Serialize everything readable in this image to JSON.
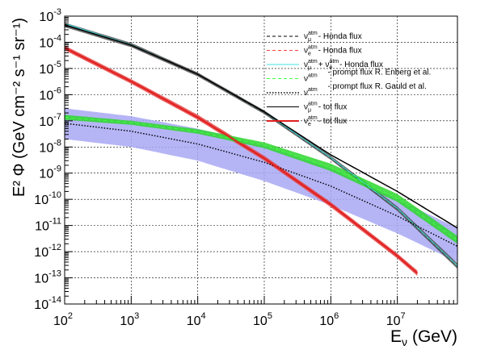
{
  "chart_data": {
    "type": "line",
    "title": "",
    "xlabel": "E",
    "xlabel_sub": "ν",
    "xlabel_unit": "(GeV)",
    "ylabel": "E² Φ (GeV cm⁻² s⁻¹ sr⁻¹)",
    "x_log": true,
    "y_log": true,
    "xlim": [
      100,
      80000000
    ],
    "ylim": [
      1e-14,
      0.001
    ],
    "grid": true,
    "x_ticks": [
      {
        "value": 100,
        "base": "10",
        "exp": "2"
      },
      {
        "value": 1000,
        "base": "10",
        "exp": "3"
      },
      {
        "value": 10000,
        "base": "10",
        "exp": "4"
      },
      {
        "value": 100000,
        "base": "10",
        "exp": "5"
      },
      {
        "value": 1000000,
        "base": "10",
        "exp": "6"
      },
      {
        "value": 10000000,
        "base": "10",
        "exp": "7"
      }
    ],
    "y_ticks": [
      {
        "value": 1e-14,
        "base": "10",
        "exp": "-14"
      },
      {
        "value": 1e-13,
        "base": "10",
        "exp": "-13"
      },
      {
        "value": 1e-12,
        "base": "10",
        "exp": "-12"
      },
      {
        "value": 1e-11,
        "base": "10",
        "exp": "-11"
      },
      {
        "value": 1e-10,
        "base": "10",
        "exp": "-10"
      },
      {
        "value": 1e-09,
        "base": "10",
        "exp": "-9"
      },
      {
        "value": 1e-08,
        "base": "10",
        "exp": "-8"
      },
      {
        "value": 1e-07,
        "base": "10",
        "exp": "-7"
      },
      {
        "value": 1e-06,
        "base": "10",
        "exp": "-6"
      },
      {
        "value": 1e-05,
        "base": "10",
        "exp": "-5"
      },
      {
        "value": 0.0001,
        "base": "10",
        "exp": "-4"
      },
      {
        "value": 0.001,
        "base": "10",
        "exp": "-3"
      }
    ],
    "bands": [
      {
        "name": "prompt flux R. Gauld uncertainty band",
        "color": "#a8a8f4",
        "x": [
          100,
          1000,
          10000,
          100000,
          1000000,
          10000000,
          80000000
        ],
        "y_low": [
          2e-08,
          1e-08,
          3e-09,
          5e-10,
          6e-11,
          5e-12,
          4e-13
        ],
        "y_high": [
          3e-07,
          1.5e-07,
          5e-08,
          1.2e-08,
          1.5e-09,
          1e-10,
          8e-12
        ]
      },
      {
        "name": "numu atm total band",
        "color": "#505050",
        "x": [
          100,
          1000,
          10000,
          100000,
          1000000,
          10000000,
          80000000
        ],
        "y_low": [
          0.00038,
          6.5e-05,
          5e-06,
          1.8e-07,
          3.2e-09,
          3.6e-11,
          2.2e-13
        ],
        "y_high": [
          0.00056,
          9.5e-05,
          7e-06,
          2.5e-07,
          4.6e-09,
          5.4e-11,
          3.6e-13
        ]
      },
      {
        "name": "nue atm total band",
        "color": "#e84040",
        "x": [
          100,
          1000,
          10000,
          100000,
          1000000,
          10000000,
          20000000
        ],
        "y_low": [
          5e-05,
          2.6e-06,
          1.1e-07,
          3e-09,
          5e-11,
          5.5e-13,
          1.2e-13
        ],
        "y_high": [
          7.5e-05,
          3.9e-06,
          1.7e-07,
          4.6e-09,
          7.8e-11,
          8.5e-13,
          1.9e-13
        ]
      },
      {
        "name": "prompt flux R. Enberg band",
        "color": "#2ed62e",
        "x": [
          100,
          1000,
          10000,
          100000,
          1000000,
          10000000,
          80000000
        ],
        "y_low": [
          1.1e-07,
          7e-08,
          3.2e-08,
          9e-09,
          1.2e-09,
          8e-11,
          2e-12
        ],
        "y_high": [
          1.7e-07,
          1e-07,
          4.8e-08,
          1.5e-08,
          2.3e-09,
          1.6e-10,
          4e-12
        ]
      }
    ],
    "series": [
      {
        "name": "numu atm - Honda flux",
        "color": "#000000",
        "dash": "5,3",
        "width": 1,
        "x": [
          100,
          1000,
          10000,
          100000,
          1000000,
          10000000,
          80000000
        ],
        "y": [
          0.00046,
          7.8e-05,
          5.9e-06,
          2.1e-07,
          3.8e-09,
          4.4e-11,
          2.8e-13
        ]
      },
      {
        "name": "nue atm - Honda flux",
        "color": "#ff8080",
        "dash": "5,3",
        "width": 1,
        "x": [
          100,
          1000,
          10000,
          100000,
          1000000,
          10000000,
          20000000
        ],
        "y": [
          6.1e-05,
          3.2e-06,
          1.35e-07,
          3.7e-09,
          6.3e-11,
          6.9e-13,
          1.5e-13
        ]
      },
      {
        "name": "numu + nue atm - Honda flux",
        "color": "#40e0e0",
        "dash": "",
        "width": 1,
        "x": [
          100,
          1000,
          10000,
          100000,
          1000000,
          10000000,
          80000000
        ],
        "y": [
          0.00052,
          8.1e-05,
          6e-06,
          2.15e-07,
          3.9e-09,
          4.5e-11,
          2.9e-13
        ]
      },
      {
        "name": "prompt flux R. Enberg et al.",
        "color": "#40ff40",
        "dash": "5,3",
        "width": 1,
        "x": [
          100,
          1000,
          10000,
          100000,
          1000000,
          10000000,
          80000000
        ],
        "y": [
          1.35e-07,
          8.5e-08,
          3.9e-08,
          1.15e-08,
          1.6e-09,
          1.1e-10,
          2.8e-12
        ]
      },
      {
        "name": "prompt flux R. Gauld et al.",
        "color": "#000000",
        "dash": "1.5,2",
        "width": 1.5,
        "x": [
          100,
          1000,
          10000,
          100000,
          1000000,
          10000000,
          80000000
        ],
        "y": [
          8e-08,
          4e-08,
          1.3e-08,
          2.6e-09,
          3.2e-10,
          2.3e-11,
          1.6e-12
        ]
      },
      {
        "name": "numu atm - tot flux",
        "color": "#000000",
        "dash": "",
        "width": 1.5,
        "x": [
          100,
          1000,
          10000,
          100000,
          1000000,
          10000000,
          80000000
        ],
        "y": [
          0.00046,
          7.8e-05,
          6e-06,
          2.2e-07,
          5e-09,
          2e-10,
          8e-12
        ]
      },
      {
        "name": "nue atm - tot flux",
        "color": "#e02020",
        "dash": "",
        "width": 2,
        "x": [
          100,
          1000,
          10000,
          100000,
          1000000,
          10000000,
          20000000
        ],
        "y": [
          6.1e-05,
          3.2e-06,
          1.35e-07,
          3.7e-09,
          6.3e-11,
          6.9e-13,
          1.5e-13
        ]
      }
    ],
    "legend": {
      "placement": "top-right",
      "entries": [
        {
          "sym": "ν",
          "sub": "μ",
          "sup": "atm",
          "text": " - Honda flux",
          "color": "#000000",
          "dash": "4,3",
          "width": 1
        },
        {
          "sym": "ν",
          "sub": "e",
          "sup": "atm",
          "text": " - Honda flux",
          "color": "#ff4040",
          "dash": "4,3",
          "width": 1
        },
        {
          "sym": "ν",
          "sub": "μ",
          "sup": "atm",
          "text": " + ν",
          "sub2": "e",
          "sup2": "atm",
          "text2": " - Honda flux",
          "color": "#40e0e0",
          "dash": "",
          "width": 1
        },
        {
          "sym": "ν",
          "sub": "",
          "sup": "atm",
          "text": " - prompt flux R. Enberg et al.",
          "color": "#40ff40",
          "dash": "4,3",
          "width": 1
        },
        {
          "sym": "ν",
          "sub": "",
          "sup": "atm",
          "text": " - prompt flux R. Gauld et al.",
          "color": "#000000",
          "dash": "1.5,2",
          "width": 1.5
        },
        {
          "sym": "ν",
          "sub": "μ",
          "sup": "atm",
          "text": " - tot flux",
          "color": "#000000",
          "dash": "",
          "width": 1
        },
        {
          "sym": "ν",
          "sub": "e",
          "sup": "atm",
          "text": " - tot flux",
          "color": "#e02020",
          "dash": "",
          "width": 2
        }
      ]
    }
  }
}
